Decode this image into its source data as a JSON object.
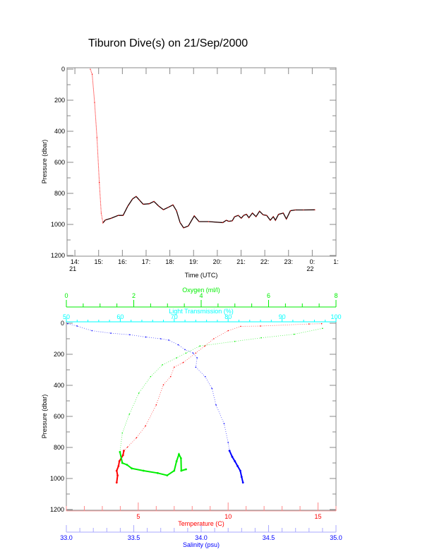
{
  "title": "Tiburon Dive(s) on 21/Sep/2000",
  "colors": {
    "temperature": "#ff0000",
    "salinity": "#0000ff",
    "oxygen": "#00ee00",
    "light": "#00ffff",
    "depth": "#000000",
    "frame": "#888888"
  },
  "chart_data": [
    {
      "type": "line",
      "xlabel": "Time (UTC)",
      "ylabel": "Pressure (dbar)",
      "xlim": [
        13.67,
        25.0
      ],
      "ylim": [
        1200,
        0
      ],
      "x_ticks": [
        14,
        15,
        16,
        17,
        18,
        19,
        20,
        21,
        22,
        23,
        24,
        25
      ],
      "x_tick_labels": [
        "14:",
        "15:",
        "16:",
        "17:",
        "18:",
        "19:",
        "20:",
        "21:",
        "22:",
        "23:",
        "0:",
        "1:"
      ],
      "x_date_labels": [
        {
          "at": 14,
          "label": "21"
        },
        {
          "at": 24,
          "label": "22"
        }
      ],
      "y_ticks": [
        0,
        200,
        400,
        600,
        800,
        1000,
        1200
      ],
      "grid": false,
      "series": [
        {
          "points": [
            [
              14.65,
              0
            ],
            [
              14.73,
              33
            ],
            [
              14.83,
              215
            ],
            [
              14.93,
              442
            ],
            [
              15.03,
              730
            ],
            [
              15.11,
              927
            ],
            [
              15.18,
              990
            ],
            [
              15.28,
              972
            ],
            [
              15.53,
              960
            ],
            [
              15.83,
              942
            ],
            [
              16.03,
              942
            ],
            [
              16.23,
              882
            ],
            [
              16.43,
              836
            ],
            [
              16.58,
              820
            ],
            [
              16.73,
              845
            ],
            [
              16.88,
              870
            ],
            [
              17.13,
              867
            ],
            [
              17.33,
              852
            ],
            [
              17.53,
              882
            ],
            [
              17.73,
              905
            ],
            [
              17.93,
              890
            ],
            [
              18.13,
              874
            ],
            [
              18.28,
              912
            ],
            [
              18.43,
              988
            ],
            [
              18.58,
              1022
            ],
            [
              18.78,
              1010
            ],
            [
              19.03,
              945
            ],
            [
              19.23,
              982
            ],
            [
              19.63,
              982
            ],
            [
              20.23,
              988
            ],
            [
              20.38,
              973
            ],
            [
              20.48,
              980
            ],
            [
              20.63,
              977
            ],
            [
              20.73,
              950
            ],
            [
              20.88,
              942
            ],
            [
              21.01,
              960
            ],
            [
              21.11,
              942
            ],
            [
              21.23,
              935
            ],
            [
              21.33,
              957
            ],
            [
              21.48,
              927
            ],
            [
              21.63,
              950
            ],
            [
              21.78,
              915
            ],
            [
              21.93,
              938
            ],
            [
              22.08,
              942
            ],
            [
              22.23,
              973
            ],
            [
              22.36,
              950
            ],
            [
              22.45,
              973
            ],
            [
              22.58,
              935
            ],
            [
              22.78,
              927
            ],
            [
              22.91,
              965
            ],
            [
              23.08,
              912
            ],
            [
              23.28,
              907
            ],
            [
              23.63,
              907
            ],
            [
              24.11,
              906
            ]
          ]
        }
      ]
    },
    {
      "type": "scatter",
      "ylabel": "Pressure (dbar)",
      "ylim": [
        1200,
        0
      ],
      "y_ticks": [
        0,
        200,
        400,
        600,
        800,
        1000,
        1200
      ],
      "axes": {
        "oxygen": {
          "label": "Oxygen (ml/l)",
          "range": [
            0,
            8
          ],
          "ticks": [
            0,
            2,
            4,
            6,
            8
          ],
          "position": "top"
        },
        "light": {
          "label": "Light Transmission (%)",
          "range": [
            50,
            100
          ],
          "ticks": [
            50,
            60,
            70,
            80,
            90,
            100
          ],
          "position": "top"
        },
        "temperature": {
          "label": "Temperature (C)",
          "range": [
            1,
            16
          ],
          "ticks": [
            5,
            10,
            15
          ],
          "position": "bottom"
        },
        "salinity": {
          "label": "Salinity (psu)",
          "range": [
            33.0,
            35.0
          ],
          "ticks": [
            "33.0",
            "33.5",
            "34.0",
            "34.5",
            "35.0"
          ],
          "position": "bottom"
        }
      },
      "series": [
        {
          "variable": "temperature",
          "points": [
            [
              3,
              15.2
            ],
            [
              5,
              14.5
            ],
            [
              18,
              11.8
            ],
            [
              20,
              10.7
            ],
            [
              48,
              10.0
            ],
            [
              100,
              9.2
            ],
            [
              147,
              8.7
            ],
            [
              192,
              8.2
            ],
            [
              253,
              7.5
            ],
            [
              283,
              7.0
            ],
            [
              344,
              6.8
            ],
            [
              397,
              6.4
            ],
            [
              526,
              6.0
            ],
            [
              662,
              5.4
            ],
            [
              738,
              4.9
            ],
            [
              798,
              4.4
            ],
            [
              821,
              4.2
            ],
            [
              850,
              4.15
            ],
            [
              889,
              3.95
            ],
            [
              920,
              3.9
            ],
            [
              950,
              3.8
            ],
            [
              980,
              3.85
            ],
            [
              1026,
              3.8
            ]
          ]
        },
        {
          "variable": "salinity",
          "points": [
            [
              3,
              33.01
            ],
            [
              18,
              33.08
            ],
            [
              48,
              33.19
            ],
            [
              64,
              33.33
            ],
            [
              74,
              33.47
            ],
            [
              89,
              33.59
            ],
            [
              100,
              33.7
            ],
            [
              109,
              33.76
            ],
            [
              139,
              33.83
            ],
            [
              170,
              33.88
            ],
            [
              192,
              33.94
            ],
            [
              223,
              33.97
            ],
            [
              283,
              33.96
            ],
            [
              344,
              34.03
            ],
            [
              420,
              34.08
            ],
            [
              526,
              34.11
            ],
            [
              647,
              34.17
            ],
            [
              768,
              34.2
            ],
            [
              821,
              34.21
            ],
            [
              860,
              34.23
            ],
            [
              889,
              34.25
            ],
            [
              920,
              34.27
            ],
            [
              950,
              34.29
            ],
            [
              990,
              34.3
            ],
            [
              1026,
              34.31
            ]
          ]
        },
        {
          "variable": "oxygen",
          "points": [
            [
              33,
              7.6
            ],
            [
              71,
              6.76
            ],
            [
              94,
              5.78
            ],
            [
              117,
              5.0
            ],
            [
              147,
              3.96
            ],
            [
              192,
              3.55
            ],
            [
              223,
              3.27
            ],
            [
              268,
              2.85
            ],
            [
              344,
              2.5
            ],
            [
              450,
              2.15
            ],
            [
              586,
              1.87
            ],
            [
              707,
              1.66
            ],
            [
              829,
              1.59
            ],
            [
              900,
              1.66
            ],
            [
              912,
              1.8
            ],
            [
              935,
              1.94
            ],
            [
              950,
              2.29
            ],
            [
              965,
              2.71
            ],
            [
              980,
              2.99
            ],
            [
              950,
              3.2
            ],
            [
              889,
              3.27
            ],
            [
              844,
              3.34
            ],
            [
              870,
              3.4
            ],
            [
              950,
              3.41
            ],
            [
              941,
              3.55
            ]
          ]
        }
      ]
    }
  ]
}
